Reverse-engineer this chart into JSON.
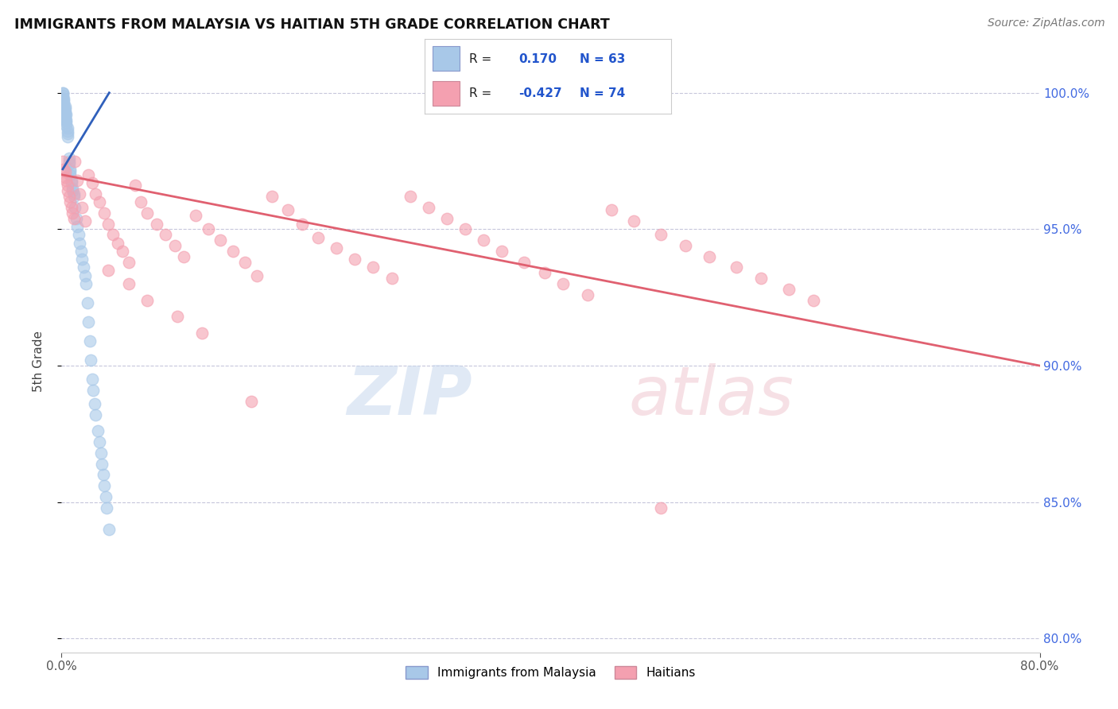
{
  "title": "IMMIGRANTS FROM MALAYSIA VS HAITIAN 5TH GRADE CORRELATION CHART",
  "source_text": "Source: ZipAtlas.com",
  "ylabel": "5th Grade",
  "xlim": [
    0.0,
    0.8
  ],
  "ylim": [
    0.795,
    1.008
  ],
  "xticks": [
    0.0,
    0.8
  ],
  "xticklabels": [
    "0.0%",
    "80.0%"
  ],
  "yticks": [
    0.8,
    0.85,
    0.9,
    0.95,
    1.0
  ],
  "yticklabels": [
    "80.0%",
    "85.0%",
    "90.0%",
    "95.0%",
    "100.0%"
  ],
  "R_malaysia": 0.17,
  "N_malaysia": 63,
  "R_haitians": -0.427,
  "N_haitians": 74,
  "blue_color": "#a8c8e8",
  "pink_color": "#f4a0b0",
  "blue_line_color": "#3060bb",
  "pink_line_color": "#e06070",
  "legend_label_malaysia": "Immigrants from Malaysia",
  "legend_label_haitians": "Haitians",
  "blue_x": [
    0.001,
    0.001,
    0.001,
    0.001,
    0.001,
    0.002,
    0.002,
    0.002,
    0.002,
    0.002,
    0.003,
    0.003,
    0.003,
    0.003,
    0.003,
    0.003,
    0.004,
    0.004,
    0.004,
    0.004,
    0.005,
    0.005,
    0.005,
    0.005,
    0.006,
    0.006,
    0.006,
    0.007,
    0.007,
    0.007,
    0.008,
    0.008,
    0.009,
    0.009,
    0.01,
    0.01,
    0.011,
    0.012,
    0.013,
    0.014,
    0.015,
    0.016,
    0.017,
    0.018,
    0.019,
    0.02,
    0.021,
    0.022,
    0.023,
    0.024,
    0.025,
    0.026,
    0.027,
    0.028,
    0.03,
    0.031,
    0.032,
    0.033,
    0.034,
    0.035,
    0.036,
    0.037,
    0.039
  ],
  "blue_y": [
    1.0,
    1.0,
    0.999,
    0.998,
    0.997,
    0.998,
    0.997,
    0.996,
    0.995,
    0.994,
    0.995,
    0.994,
    0.993,
    0.992,
    0.991,
    0.99,
    0.992,
    0.99,
    0.989,
    0.988,
    0.987,
    0.986,
    0.985,
    0.984,
    0.976,
    0.975,
    0.974,
    0.972,
    0.971,
    0.97,
    0.968,
    0.967,
    0.965,
    0.964,
    0.963,
    0.962,
    0.958,
    0.954,
    0.951,
    0.948,
    0.945,
    0.942,
    0.939,
    0.936,
    0.933,
    0.93,
    0.923,
    0.916,
    0.909,
    0.902,
    0.895,
    0.891,
    0.886,
    0.882,
    0.876,
    0.872,
    0.868,
    0.864,
    0.86,
    0.856,
    0.852,
    0.848,
    0.84
  ],
  "pink_x": [
    0.001,
    0.002,
    0.003,
    0.003,
    0.004,
    0.005,
    0.005,
    0.006,
    0.007,
    0.008,
    0.009,
    0.01,
    0.011,
    0.013,
    0.015,
    0.017,
    0.019,
    0.022,
    0.025,
    0.028,
    0.031,
    0.035,
    0.038,
    0.042,
    0.046,
    0.05,
    0.055,
    0.06,
    0.065,
    0.07,
    0.078,
    0.085,
    0.093,
    0.1,
    0.11,
    0.12,
    0.13,
    0.14,
    0.15,
    0.16,
    0.172,
    0.185,
    0.197,
    0.21,
    0.225,
    0.24,
    0.255,
    0.27,
    0.285,
    0.3,
    0.315,
    0.33,
    0.345,
    0.36,
    0.378,
    0.395,
    0.41,
    0.43,
    0.45,
    0.468,
    0.49,
    0.51,
    0.53,
    0.552,
    0.572,
    0.595,
    0.615,
    0.038,
    0.055,
    0.07,
    0.095,
    0.115,
    0.49,
    0.155
  ],
  "pink_y": [
    0.975,
    0.972,
    0.969,
    0.971,
    0.968,
    0.966,
    0.964,
    0.962,
    0.96,
    0.958,
    0.956,
    0.954,
    0.975,
    0.968,
    0.963,
    0.958,
    0.953,
    0.97,
    0.967,
    0.963,
    0.96,
    0.956,
    0.952,
    0.948,
    0.945,
    0.942,
    0.938,
    0.966,
    0.96,
    0.956,
    0.952,
    0.948,
    0.944,
    0.94,
    0.955,
    0.95,
    0.946,
    0.942,
    0.938,
    0.933,
    0.962,
    0.957,
    0.952,
    0.947,
    0.943,
    0.939,
    0.936,
    0.932,
    0.962,
    0.958,
    0.954,
    0.95,
    0.946,
    0.942,
    0.938,
    0.934,
    0.93,
    0.926,
    0.957,
    0.953,
    0.948,
    0.944,
    0.94,
    0.936,
    0.932,
    0.928,
    0.924,
    0.935,
    0.93,
    0.924,
    0.918,
    0.912,
    0.848,
    0.887
  ],
  "blue_trendline_x": [
    0.001,
    0.039
  ],
  "blue_trendline_y": [
    0.972,
    1.0
  ],
  "pink_trendline_x": [
    0.0,
    0.8
  ],
  "pink_trendline_y": [
    0.97,
    0.9
  ]
}
